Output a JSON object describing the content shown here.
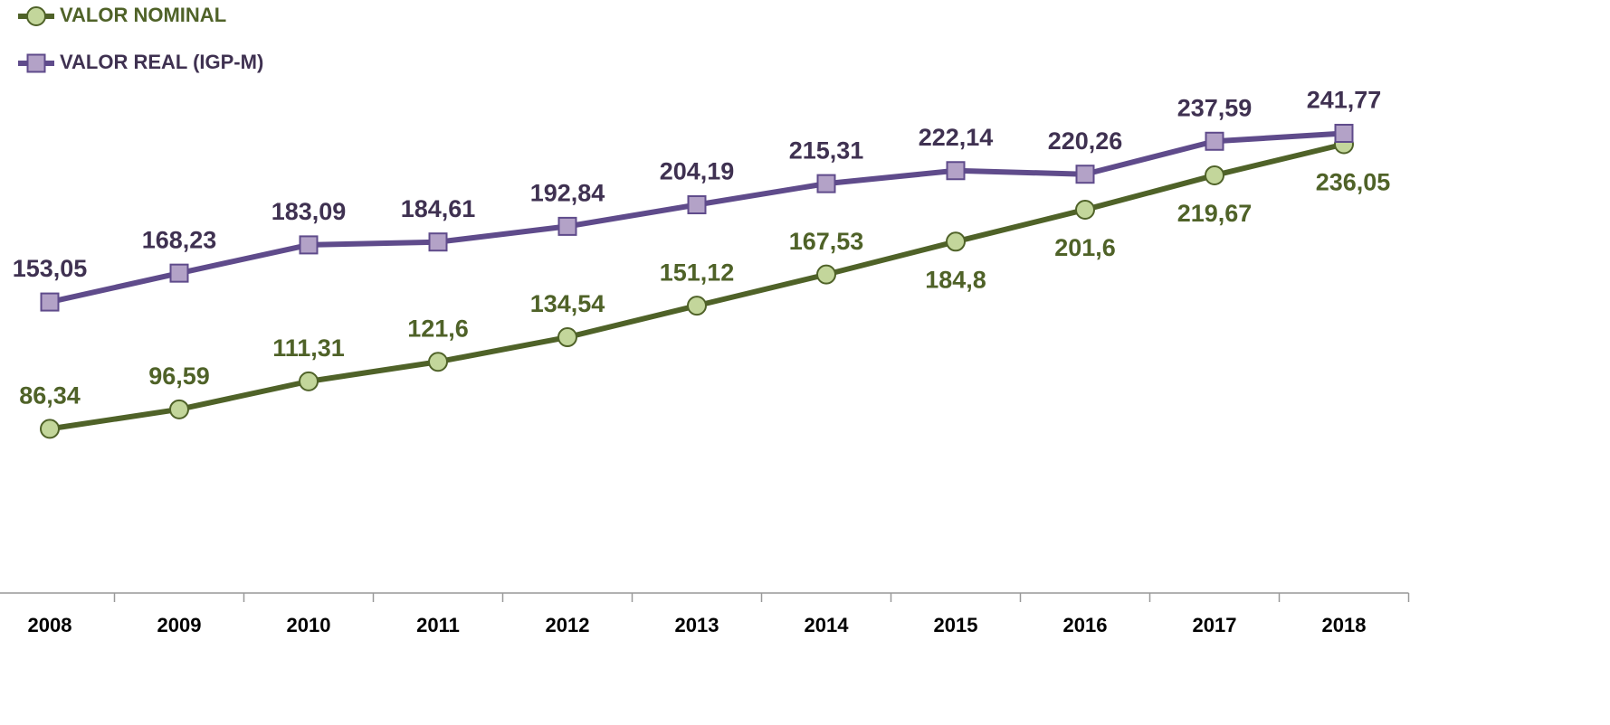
{
  "chart_data": {
    "type": "line",
    "categories": [
      "2008",
      "2009",
      "2010",
      "2011",
      "2012",
      "2013",
      "2014",
      "2015",
      "2016",
      "2017",
      "2018"
    ],
    "series": [
      {
        "name": "VALOR NOMINAL",
        "color": "#4f6228",
        "marker_color": "#c3d69b",
        "marker": "circle",
        "values": [
          86.34,
          96.59,
          111.31,
          121.6,
          134.54,
          151.12,
          167.53,
          184.8,
          201.6,
          219.67,
          236.05
        ],
        "value_labels": [
          "86,34",
          "96,59",
          "111,31",
          "121,6",
          "134,54",
          "151,12",
          "167,53",
          "184,8",
          "201,6",
          "219,67",
          "236,05"
        ]
      },
      {
        "name": "VALOR REAL (IGP-M)",
        "color": "#5f4b8b",
        "marker_color": "#b3a2c7",
        "marker": "square",
        "values": [
          153.05,
          168.23,
          183.09,
          184.61,
          192.84,
          204.19,
          215.31,
          222.14,
          220.26,
          237.59,
          241.77
        ],
        "value_labels": [
          "153,05",
          "168,23",
          "183,09",
          "184,61",
          "192,84",
          "204,19",
          "215,31",
          "222,14",
          "220,26",
          "237,59",
          "241,77"
        ]
      }
    ],
    "ylim": [
      0,
      300
    ],
    "legend": "top-left"
  }
}
